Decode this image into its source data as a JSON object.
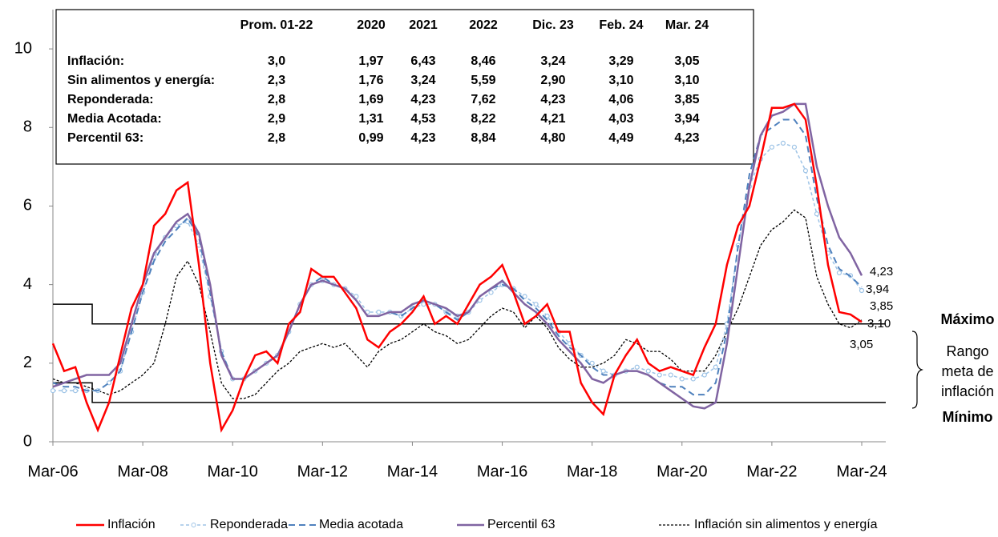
{
  "chart_data": {
    "type": "line",
    "categories": [
      "Mar-06",
      null,
      null,
      null,
      null,
      null,
      null,
      null,
      "Mar-08",
      null,
      null,
      null,
      null,
      null,
      null,
      null,
      "Mar-10",
      null,
      null,
      null,
      null,
      null,
      null,
      null,
      "Mar-12",
      null,
      null,
      null,
      null,
      null,
      null,
      null,
      "Mar-14",
      null,
      null,
      null,
      null,
      null,
      null,
      null,
      "Mar-16",
      null,
      null,
      null,
      null,
      null,
      null,
      null,
      "Mar-18",
      null,
      null,
      null,
      null,
      null,
      null,
      null,
      "Mar-20",
      null,
      null,
      null,
      null,
      null,
      null,
      null,
      "Mar-22",
      null,
      null,
      null,
      null,
      null,
      null,
      null,
      "Mar-24"
    ],
    "ylim": [
      0,
      11
    ],
    "yticks": [
      0,
      2,
      4,
      6,
      8,
      10
    ],
    "series": [
      {
        "name": "Inflación",
        "color": "#ff0000",
        "style": "solid",
        "values": [
          2.5,
          1.8,
          1.9,
          1.0,
          0.3,
          1.0,
          2.2,
          3.4,
          4.0,
          5.5,
          5.8,
          6.4,
          6.6,
          4.5,
          2.0,
          0.3,
          0.8,
          1.6,
          2.2,
          2.3,
          2.0,
          3.0,
          3.3,
          4.4,
          4.2,
          4.2,
          3.8,
          3.4,
          2.6,
          2.4,
          2.8,
          3.0,
          3.3,
          3.7,
          3.0,
          3.2,
          3.0,
          3.5,
          4.0,
          4.2,
          4.5,
          3.8,
          3.0,
          3.2,
          3.5,
          2.8,
          2.8,
          1.5,
          1.0,
          0.7,
          1.7,
          2.2,
          2.6,
          2.0,
          1.8,
          1.9,
          1.8,
          1.7,
          2.4,
          3.0,
          4.5,
          5.5,
          6.0,
          7.2,
          8.5,
          8.5,
          8.6,
          8.2,
          6.5,
          4.5,
          3.3,
          3.24,
          3.05
        ],
        "value_labels": [
          null,
          null,
          null,
          null,
          null,
          null,
          null,
          null,
          null,
          null,
          null,
          null,
          null,
          null,
          null,
          null,
          null,
          null,
          null,
          null,
          null,
          null,
          null,
          null,
          null,
          null,
          null,
          null,
          null,
          null,
          null,
          null,
          null,
          null,
          null,
          null,
          null,
          null,
          null,
          null,
          null,
          null,
          null,
          null,
          null,
          null,
          null,
          null,
          null,
          null,
          null,
          null,
          null,
          null,
          null,
          null,
          null,
          null,
          null,
          null,
          null,
          null,
          null,
          null,
          null,
          null,
          null,
          null,
          null,
          null,
          null,
          null,
          "3,05"
        ]
      },
      {
        "name": "Reponderada",
        "color": "#9dc3e6",
        "style": "dashdot-marker",
        "values": [
          1.3,
          1.3,
          1.3,
          1.3,
          1.3,
          1.5,
          1.8,
          2.8,
          3.8,
          4.7,
          5.2,
          5.5,
          5.6,
          5.0,
          3.7,
          2.3,
          1.6,
          1.6,
          1.8,
          2.0,
          2.2,
          2.8,
          3.5,
          4.0,
          4.1,
          4.0,
          3.9,
          3.7,
          3.3,
          3.3,
          3.3,
          3.2,
          3.4,
          3.5,
          3.5,
          3.3,
          3.2,
          3.3,
          3.6,
          3.8,
          4.0,
          3.9,
          3.7,
          3.5,
          3.2,
          2.8,
          2.5,
          2.2,
          2.0,
          1.8,
          1.7,
          1.8,
          1.9,
          1.8,
          1.7,
          1.7,
          1.6,
          1.6,
          1.7,
          1.9,
          3.0,
          5.0,
          6.5,
          7.2,
          7.5,
          7.6,
          7.5,
          6.9,
          5.8,
          4.8,
          4.3,
          4.23,
          3.85
        ],
        "value_labels": [
          null,
          null,
          null,
          null,
          null,
          null,
          null,
          null,
          null,
          null,
          null,
          null,
          null,
          null,
          null,
          null,
          null,
          null,
          null,
          null,
          null,
          null,
          null,
          null,
          null,
          null,
          null,
          null,
          null,
          null,
          null,
          null,
          null,
          null,
          null,
          null,
          null,
          null,
          null,
          null,
          null,
          null,
          null,
          null,
          null,
          null,
          null,
          null,
          null,
          null,
          null,
          null,
          null,
          null,
          null,
          null,
          null,
          null,
          null,
          null,
          null,
          null,
          null,
          null,
          null,
          null,
          null,
          null,
          null,
          null,
          null,
          null,
          "3,85"
        ]
      },
      {
        "name": "Media acotada",
        "color": "#4f81bd",
        "style": "dash",
        "values": [
          1.5,
          1.4,
          1.4,
          1.3,
          1.3,
          1.5,
          1.8,
          2.8,
          3.8,
          4.6,
          5.1,
          5.4,
          5.7,
          5.2,
          3.8,
          2.3,
          1.6,
          1.6,
          1.8,
          2.0,
          2.2,
          2.8,
          3.5,
          4.0,
          4.2,
          4.0,
          3.9,
          3.6,
          3.2,
          3.2,
          3.3,
          3.2,
          3.4,
          3.6,
          3.5,
          3.3,
          3.1,
          3.3,
          3.7,
          3.9,
          4.0,
          3.9,
          3.6,
          3.4,
          3.1,
          2.7,
          2.4,
          2.2,
          1.9,
          1.7,
          1.7,
          1.8,
          1.8,
          1.7,
          1.5,
          1.4,
          1.4,
          1.2,
          1.2,
          1.5,
          2.8,
          5.0,
          6.8,
          7.8,
          8.0,
          8.2,
          8.2,
          7.8,
          6.2,
          5.0,
          4.4,
          4.21,
          3.94
        ],
        "value_labels": [
          null,
          null,
          null,
          null,
          null,
          null,
          null,
          null,
          null,
          null,
          null,
          null,
          null,
          null,
          null,
          null,
          null,
          null,
          null,
          null,
          null,
          null,
          null,
          null,
          null,
          null,
          null,
          null,
          null,
          null,
          null,
          null,
          null,
          null,
          null,
          null,
          null,
          null,
          null,
          null,
          null,
          null,
          null,
          null,
          null,
          null,
          null,
          null,
          null,
          null,
          null,
          null,
          null,
          null,
          null,
          null,
          null,
          null,
          null,
          null,
          null,
          null,
          null,
          null,
          null,
          null,
          null,
          null,
          null,
          null,
          null,
          null,
          "3,94"
        ]
      },
      {
        "name": "Percentil 63",
        "color": "#8064a2",
        "style": "solid-wide",
        "values": [
          1.4,
          1.5,
          1.6,
          1.7,
          1.7,
          1.7,
          2.0,
          3.0,
          4.0,
          4.8,
          5.2,
          5.6,
          5.8,
          5.3,
          4.0,
          2.2,
          1.6,
          1.6,
          1.8,
          2.0,
          2.2,
          2.8,
          3.5,
          4.0,
          4.1,
          4.0,
          3.9,
          3.6,
          3.2,
          3.2,
          3.3,
          3.3,
          3.5,
          3.6,
          3.5,
          3.4,
          3.2,
          3.3,
          3.7,
          3.9,
          4.1,
          3.8,
          3.5,
          3.3,
          3.0,
          2.6,
          2.3,
          2.0,
          1.6,
          1.5,
          1.7,
          1.8,
          1.8,
          1.7,
          1.5,
          1.3,
          1.1,
          0.9,
          0.85,
          1.0,
          2.5,
          4.5,
          6.5,
          7.8,
          8.3,
          8.4,
          8.6,
          8.6,
          7.0,
          6.0,
          5.2,
          4.8,
          4.23
        ],
        "value_labels": [
          null,
          null,
          null,
          null,
          null,
          null,
          null,
          null,
          null,
          null,
          null,
          null,
          null,
          null,
          null,
          null,
          null,
          null,
          null,
          null,
          null,
          null,
          null,
          null,
          null,
          null,
          null,
          null,
          null,
          null,
          null,
          null,
          null,
          null,
          null,
          null,
          null,
          null,
          null,
          null,
          null,
          null,
          null,
          null,
          null,
          null,
          null,
          null,
          null,
          null,
          null,
          null,
          null,
          null,
          null,
          null,
          null,
          null,
          null,
          null,
          null,
          null,
          null,
          null,
          null,
          null,
          null,
          null,
          null,
          null,
          null,
          null,
          "4,23"
        ]
      },
      {
        "name": "Inflación sin alimentos y energía",
        "color": "#000000",
        "style": "dot",
        "values": [
          1.6,
          1.5,
          1.5,
          1.4,
          1.3,
          1.2,
          1.3,
          1.5,
          1.7,
          2.0,
          3.0,
          4.2,
          4.6,
          4.0,
          2.8,
          1.5,
          1.1,
          1.1,
          1.2,
          1.5,
          1.8,
          2.0,
          2.3,
          2.4,
          2.5,
          2.4,
          2.5,
          2.2,
          1.9,
          2.3,
          2.5,
          2.6,
          2.8,
          3.0,
          2.8,
          2.7,
          2.5,
          2.6,
          2.9,
          3.2,
          3.4,
          3.3,
          2.9,
          3.2,
          2.9,
          2.4,
          2.1,
          1.9,
          1.9,
          2.0,
          2.2,
          2.6,
          2.5,
          2.3,
          2.3,
          2.1,
          1.8,
          1.8,
          1.8,
          2.2,
          2.8,
          3.4,
          4.2,
          5.0,
          5.4,
          5.6,
          5.9,
          5.7,
          4.2,
          3.5,
          3.0,
          2.9,
          3.1
        ],
        "value_labels": [
          null,
          null,
          null,
          null,
          null,
          null,
          null,
          null,
          null,
          null,
          null,
          null,
          null,
          null,
          null,
          null,
          null,
          null,
          null,
          null,
          null,
          null,
          null,
          null,
          null,
          null,
          null,
          null,
          null,
          null,
          null,
          null,
          null,
          null,
          null,
          null,
          null,
          null,
          null,
          null,
          null,
          null,
          null,
          null,
          null,
          null,
          null,
          null,
          null,
          null,
          null,
          null,
          null,
          null,
          null,
          null,
          null,
          null,
          null,
          null,
          null,
          null,
          null,
          null,
          null,
          null,
          null,
          null,
          null,
          null,
          null,
          null,
          "3,10"
        ]
      }
    ],
    "target_band": {
      "upper": [
        3.5,
        3.5,
        3.5,
        3.5,
        3,
        3,
        3,
        3,
        3,
        3,
        3,
        3,
        3,
        3,
        3,
        3,
        3,
        3,
        3,
        3,
        3,
        3,
        3,
        3,
        3,
        3,
        3,
        3,
        3,
        3,
        3,
        3,
        3,
        3,
        3,
        3,
        3,
        3,
        3,
        3,
        3,
        3,
        3,
        3,
        3,
        3,
        3,
        3,
        3,
        3,
        3,
        3,
        3,
        3,
        3,
        3,
        3,
        3,
        3,
        3,
        3,
        3,
        3,
        3,
        3,
        3,
        3,
        3,
        3,
        3,
        3,
        3,
        3
      ],
      "lower": [
        1.5,
        1.5,
        1.5,
        1.5,
        1,
        1,
        1,
        1,
        1,
        1,
        1,
        1,
        1,
        1,
        1,
        1,
        1,
        1,
        1,
        1,
        1,
        1,
        1,
        1,
        1,
        1,
        1,
        1,
        1,
        1,
        1,
        1,
        1,
        1,
        1,
        1,
        1,
        1,
        1,
        1,
        1,
        1,
        1,
        1,
        1,
        1,
        1,
        1,
        1,
        1,
        1,
        1,
        1,
        1,
        1,
        1,
        1,
        1,
        1,
        1,
        1,
        1,
        1,
        1,
        1,
        1,
        1,
        1,
        1,
        1,
        1,
        1,
        1
      ]
    },
    "annotations": [
      "Máximo",
      "Rango",
      "meta de",
      "inflación",
      "Mínimo"
    ],
    "table": {
      "columns": [
        "Prom. 01-22",
        "2020",
        "2021",
        "2022",
        "Dic. 23",
        "Feb. 24",
        "Mar. 24"
      ],
      "rows": [
        [
          "Inflación:",
          "3,0",
          "1,97",
          "6,43",
          "8,46",
          "3,24",
          "3,29",
          "3,05"
        ],
        [
          "Sin alimentos y energía:",
          "2,3",
          "1,76",
          "3,24",
          "5,59",
          "2,90",
          "3,10",
          "3,10"
        ],
        [
          "Reponderada:",
          "2,8",
          "1,69",
          "4,23",
          "7,62",
          "4,23",
          "4,06",
          "3,85"
        ],
        [
          "Media Acotada:",
          "2,9",
          "1,31",
          "4,53",
          "8,22",
          "4,21",
          "4,03",
          "3,94"
        ],
        [
          "Percentil 63:",
          "2,8",
          "0,99",
          "4,23",
          "8,84",
          "4,80",
          "4,49",
          "4,23"
        ]
      ]
    }
  }
}
